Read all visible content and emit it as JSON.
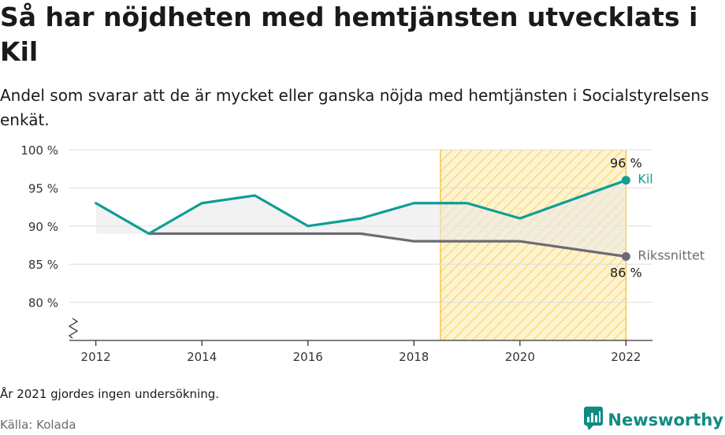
{
  "title": "Så har nöjdheten med hemtjänsten utvecklats i Kil",
  "subtitle": "Andel som svarar att de är mycket eller ganska nöjda med hemtjänsten i Socialstyrelsens enkät.",
  "footnote": "År 2021 gjordes ingen undersökning.",
  "source": "Källa: Kolada",
  "brand": {
    "name": "Newsworthy",
    "icon": "newsworthy-logo-icon",
    "color": "#0f8c81"
  },
  "colors": {
    "kil": "#0f9e94",
    "riks": "#6e6a73",
    "highlight": "#f4c84a",
    "grid": "#dddddd"
  },
  "chart_data": {
    "type": "line",
    "x_ticks": [
      "2012",
      "2014",
      "2016",
      "2018",
      "2020",
      "2022"
    ],
    "y_ticks": [
      "80 %",
      "85 %",
      "90 %",
      "95 %",
      "100 %"
    ],
    "ylim": [
      75,
      100
    ],
    "xlim": [
      2011.5,
      2022.5
    ],
    "y_axis_break": true,
    "highlight_range": [
      2018.5,
      2022
    ],
    "series": [
      {
        "name": "Kil",
        "color": "#0f9e94",
        "x": [
          2012,
          2013,
          2014,
          2015,
          2016,
          2017,
          2018,
          2019,
          2020,
          2022
        ],
        "values": [
          93,
          89,
          93,
          94,
          90,
          91,
          93,
          93,
          91,
          96
        ],
        "end_label": "96 %"
      },
      {
        "name": "Rikssnittet",
        "color": "#6e6a73",
        "x": [
          2013,
          2014,
          2015,
          2016,
          2017,
          2018,
          2019,
          2020,
          2022
        ],
        "values": [
          89,
          89,
          89,
          89,
          89,
          88,
          88,
          88,
          86
        ],
        "end_label": "86 %"
      }
    ]
  }
}
